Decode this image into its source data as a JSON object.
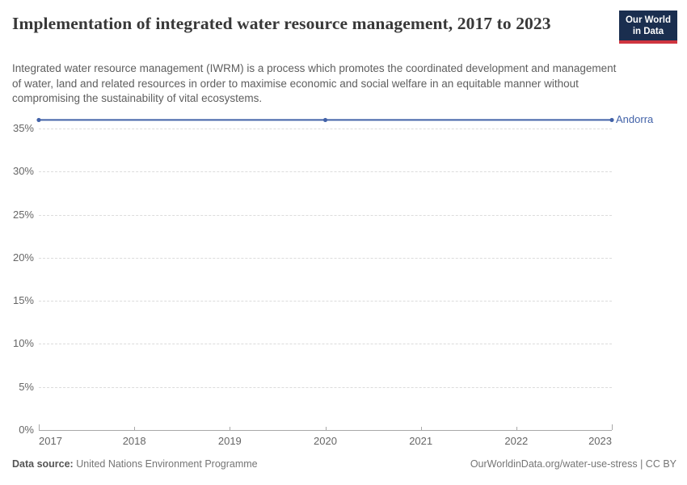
{
  "header": {
    "title": "Implementation of integrated water resource management, 2017 to 2023",
    "logo": {
      "line1": "Our World",
      "line2": "in Data"
    }
  },
  "subtitle": "Integrated water resource management (IWRM) is a process which promotes the coordinated development and management of water, land and related resources in order to maximise economic and social welfare in an equitable manner without compromising the sustainability of vital ecosystems.",
  "chart_data": {
    "type": "line",
    "title": "Implementation of integrated water resource management, 2017 to 2023",
    "x": [
      2017,
      2020,
      2023
    ],
    "series": [
      {
        "name": "Andorra",
        "values": [
          36,
          36,
          36
        ],
        "color": "#4262A8"
      }
    ],
    "xlim": [
      2017,
      2023
    ],
    "ylim": [
      0,
      36.8
    ],
    "xticks": [
      2017,
      2018,
      2019,
      2020,
      2021,
      2022,
      2023
    ],
    "yticks": [
      0,
      5,
      10,
      15,
      20,
      25,
      30,
      35
    ],
    "ytick_suffix": "%",
    "grid": "horizontal-dashed",
    "legend_position": "right-of-line-end",
    "xlabel": "",
    "ylabel": ""
  },
  "footer": {
    "source_label": "Data source:",
    "source_value": "United Nations Environment Programme",
    "link": "OurWorldinData.org/water-use-stress",
    "separator": " | ",
    "license": "CC BY"
  },
  "colors": {
    "title": "#383838",
    "subtitle": "#5e5e5e",
    "axis_text": "#666666",
    "gridline": "#dcdcdc",
    "axis_line": "#a8a8a8",
    "series": "#4262A8",
    "logo_bg": "#1a2e4f",
    "logo_accent": "#cf3540"
  }
}
